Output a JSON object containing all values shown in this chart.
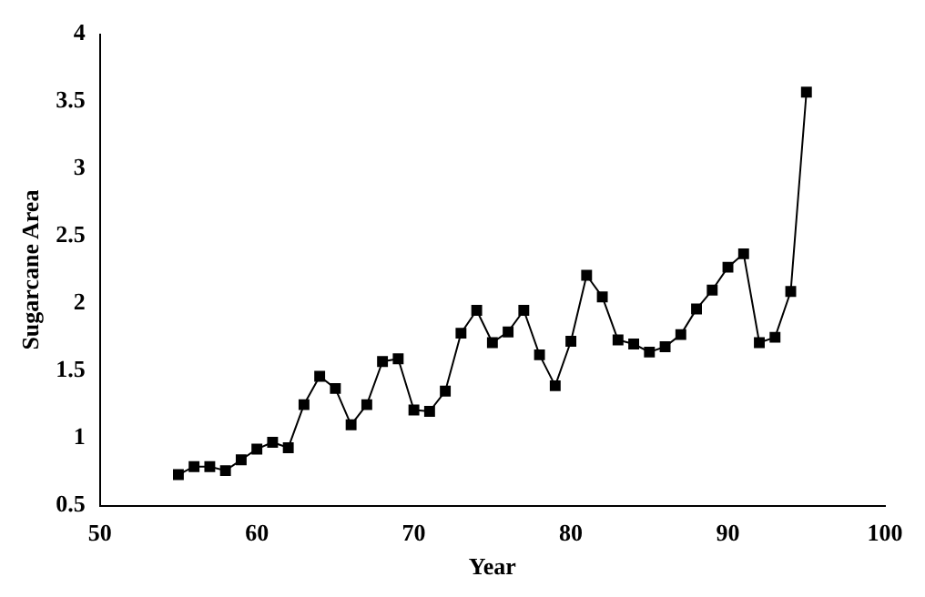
{
  "chart_data": {
    "type": "line",
    "xlabel": "Year",
    "ylabel": "Sugarcane Area",
    "x": [
      55,
      56,
      57,
      58,
      59,
      60,
      61,
      62,
      63,
      64,
      65,
      66,
      67,
      68,
      69,
      70,
      71,
      72,
      73,
      74,
      75,
      76,
      77,
      78,
      79,
      80,
      81,
      82,
      83,
      84,
      85,
      86,
      87,
      88,
      89,
      90,
      91,
      92,
      93,
      94,
      95
    ],
    "series": [
      {
        "color": "#000000",
        "values": [
          0.73,
          0.79,
          0.79,
          0.76,
          0.84,
          0.92,
          0.97,
          0.93,
          1.25,
          1.46,
          1.37,
          1.1,
          1.25,
          1.57,
          1.59,
          1.21,
          1.2,
          1.35,
          1.78,
          1.95,
          1.71,
          1.79,
          1.95,
          1.62,
          1.39,
          1.72,
          2.21,
          2.05,
          1.73,
          1.7,
          1.64,
          1.68,
          1.77,
          1.96,
          2.1,
          2.27,
          2.37,
          1.71,
          1.75,
          2.09,
          3.57
        ]
      }
    ],
    "xlim": [
      50,
      100
    ],
    "xticks": [
      50,
      60,
      70,
      80,
      90,
      100
    ],
    "ylim": [
      0.5,
      4
    ],
    "yticks": [
      0.5,
      1,
      1.5,
      2,
      2.5,
      3,
      3.5,
      4
    ],
    "grid": false,
    "legend": false,
    "marker": "square",
    "line_style": "solid"
  }
}
